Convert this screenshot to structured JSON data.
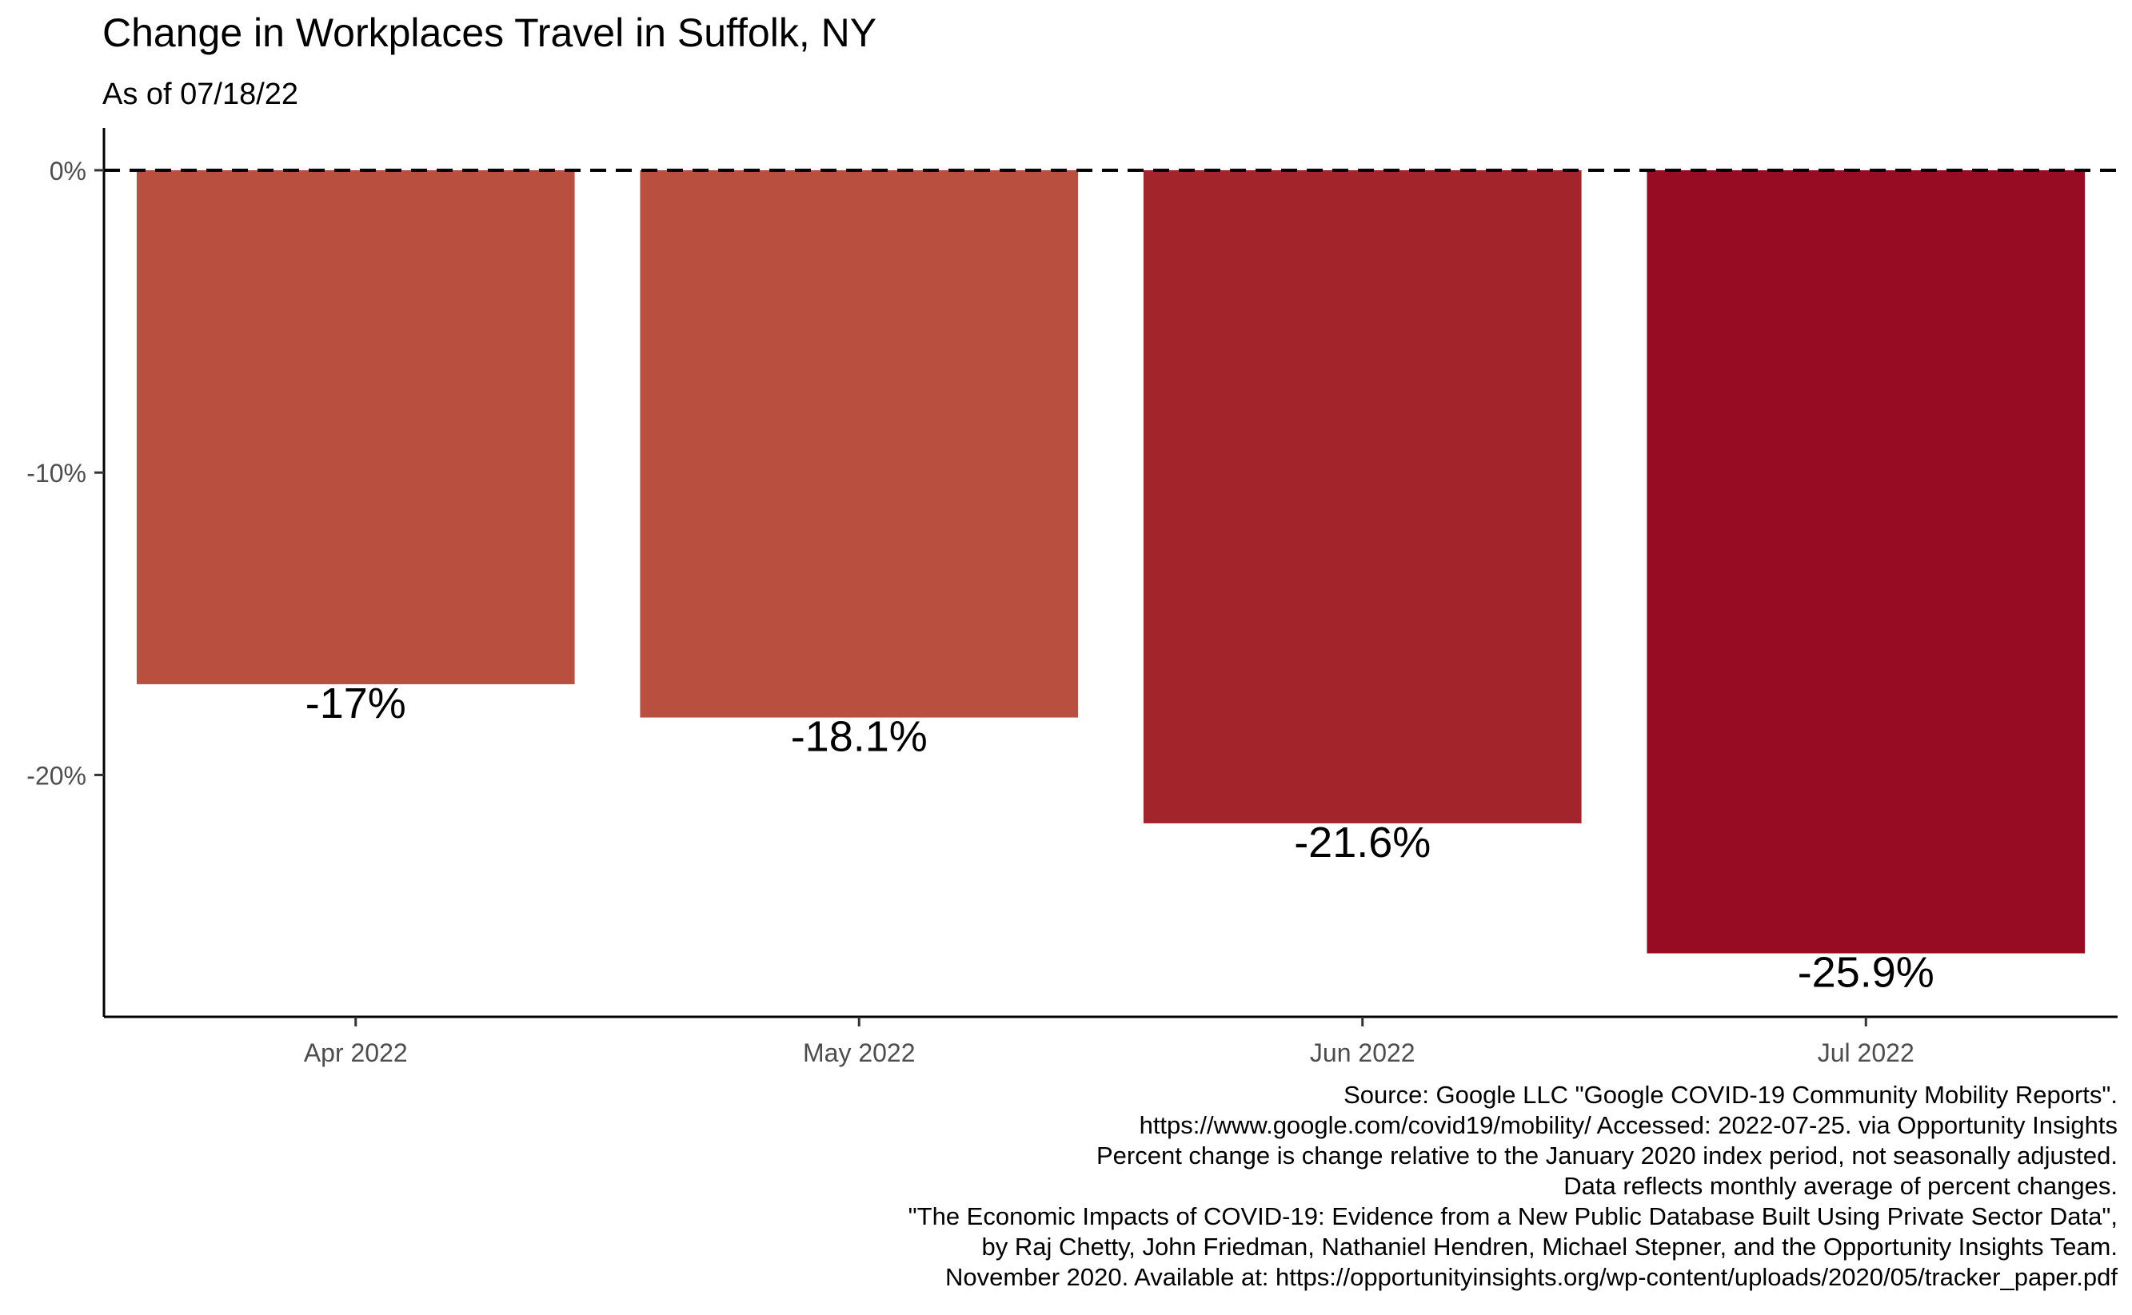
{
  "chart_data": {
    "type": "bar",
    "title": "Change in Workplaces Travel in Suffolk, NY",
    "subtitle": "As of 07/18/22",
    "categories": [
      "Apr 2022",
      "May 2022",
      "Jun 2022",
      "Jul 2022"
    ],
    "values": [
      -17,
      -18.1,
      -21.6,
      -25.9
    ],
    "value_labels": [
      "-17%",
      "-18.1%",
      "-21.6%",
      "-25.9%"
    ],
    "bar_colors": [
      "#b84f3f",
      "#b84f3f",
      "#a3242b",
      "#980c23"
    ],
    "ylim": [
      -28,
      1.4
    ],
    "y_ticks": [
      0,
      -10,
      -20
    ],
    "y_tick_labels": [
      "0%",
      "-10%",
      "-20%"
    ],
    "reference_line": {
      "value": 0,
      "style": "dashed"
    },
    "xlabel": "",
    "ylabel": "",
    "grid": false,
    "legend": "none",
    "caption": [
      "Source: Google LLC \"Google COVID-19 Community Mobility Reports\".",
      "https://www.google.com/covid19/mobility/ Accessed: 2022-07-25. via Opportunity Insights",
      "Percent change is change relative to the January 2020 index period, not seasonally adjusted.",
      "Data reflects monthly average of percent changes.",
      "\"The Economic Impacts of COVID-19: Evidence from a New Public Database Built Using Private Sector Data\",",
      "by Raj Chetty, John Friedman, Nathaniel Hendren, Michael Stepner, and the Opportunity Insights Team.",
      "November 2020. Available at: https://opportunityinsights.org/wp-content/uploads/2020/05/tracker_paper.pdf"
    ]
  }
}
